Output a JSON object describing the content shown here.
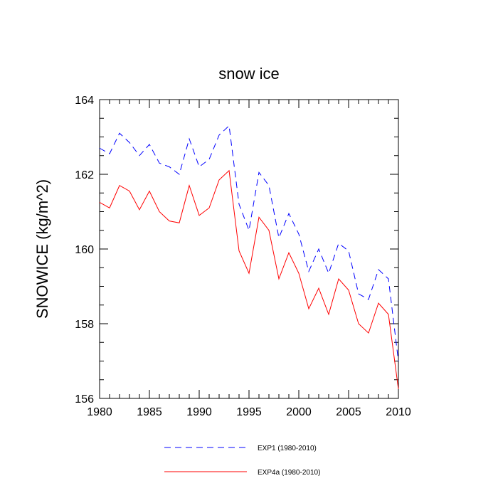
{
  "chart_data": {
    "type": "line",
    "title": "snow ice",
    "xlabel": "",
    "ylabel": "SNOWICE  (kg/m^2)",
    "xlim": [
      1980,
      2010
    ],
    "ylim": [
      156,
      164
    ],
    "x_ticks": [
      1980,
      1985,
      1990,
      1995,
      2000,
      2005,
      2010
    ],
    "y_ticks": [
      156,
      158,
      160,
      162,
      164
    ],
    "x_minor_step": 1,
    "y_minor_step": 0.5,
    "x": [
      1980,
      1981,
      1982,
      1983,
      1984,
      1985,
      1986,
      1987,
      1988,
      1989,
      1990,
      1991,
      1992,
      1993,
      1994,
      1995,
      1996,
      1997,
      1998,
      1999,
      2000,
      2001,
      2002,
      2003,
      2004,
      2005,
      2006,
      2007,
      2008,
      2009,
      2010
    ],
    "series": [
      {
        "name": "EXP1 (1980-2010)",
        "color": "#0000ff",
        "style": "dashed",
        "values": [
          162.7,
          162.55,
          163.1,
          162.85,
          162.5,
          162.8,
          162.3,
          162.2,
          162.0,
          162.95,
          162.2,
          162.4,
          163.05,
          163.3,
          161.2,
          160.5,
          162.05,
          161.7,
          160.3,
          160.95,
          160.4,
          159.4,
          160.0,
          159.35,
          160.15,
          159.95,
          158.8,
          158.65,
          159.45,
          159.2,
          157.0
        ]
      },
      {
        "name": "EXP4a (1980-2010)",
        "color": "#ff0000",
        "style": "solid",
        "values": [
          161.25,
          161.1,
          161.7,
          161.55,
          161.05,
          161.55,
          161.0,
          160.75,
          160.7,
          161.7,
          160.9,
          161.1,
          161.85,
          162.1,
          159.95,
          159.35,
          160.85,
          160.5,
          159.2,
          159.9,
          159.35,
          158.4,
          158.95,
          158.25,
          159.2,
          158.9,
          158.0,
          157.75,
          158.55,
          158.25,
          156.25
        ]
      }
    ],
    "legend_position": "bottom-center"
  }
}
